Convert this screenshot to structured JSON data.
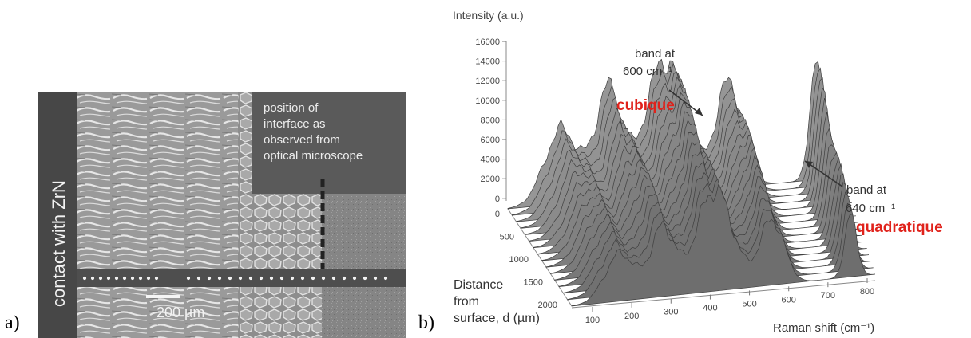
{
  "figure": {
    "panel_a": {
      "label": "a)",
      "contact_label": "contact with ZrN",
      "interface_note": [
        "position of",
        "interface as",
        "observed from",
        "optical microscope"
      ],
      "scale_bar": "200 µm"
    },
    "panel_b": {
      "label": "b)",
      "z_axis_title": "Intensity (a.u.)",
      "z_ticks": [
        "16000",
        "14000",
        "12000",
        "10000",
        "8000",
        "6000",
        "4000",
        "2000",
        "0"
      ],
      "depth_axis_title": [
        "Distance",
        "from",
        "surface, d (µm)"
      ],
      "depth_ticks": [
        "0",
        "500",
        "1000",
        "1500",
        "2000"
      ],
      "x_axis_title": "Raman shift (cm⁻¹)",
      "x_ticks": [
        "100",
        "200",
        "300",
        "400",
        "500",
        "600",
        "700",
        "800"
      ],
      "annotation_600": {
        "line1": "band at",
        "line2": "600 cm⁻¹",
        "phase": "cubique"
      },
      "annotation_640": {
        "line1": "band at",
        "line2": "640 cm⁻¹",
        "phase": "quadratique"
      }
    }
  },
  "colors": {
    "phase_label": "#e0221b",
    "surface": "#777777"
  }
}
